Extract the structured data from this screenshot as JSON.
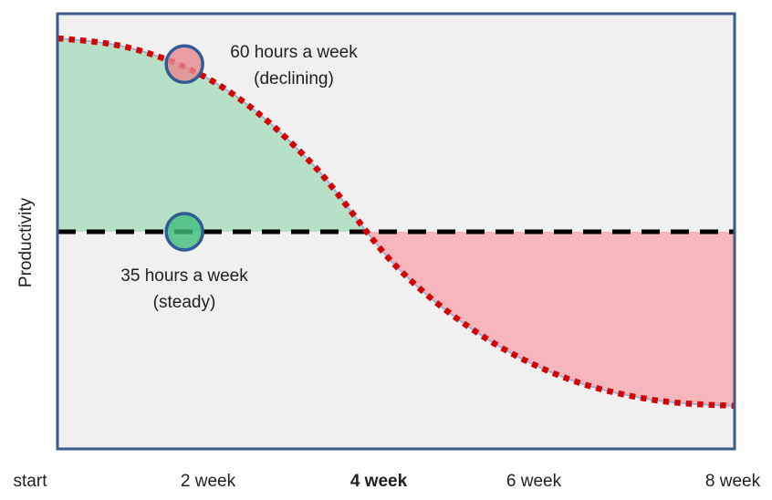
{
  "chart_data": {
    "type": "line",
    "title": "",
    "xlabel": "",
    "ylabel": "Productivity",
    "x_tick_labels": [
      "start",
      "2 week",
      "4 week",
      "6 week",
      "8 week"
    ],
    "x_weeks": [
      0,
      1,
      2,
      3,
      4,
      5,
      6,
      7,
      8
    ],
    "ylim": [
      0.5,
      1.51
    ],
    "grid": false,
    "legend": "none",
    "series": [
      {
        "name": "60 hours a week (declining)",
        "style": "red-dotted-sigmoid-curve",
        "values": [
          1.45,
          1.42,
          1.33,
          1.16,
          0.92,
          0.76,
          0.66,
          0.61,
          0.595
        ]
      },
      {
        "name": "35 hours a week (steady)",
        "style": "black-dashed-horizontal-baseline",
        "values": [
          1.0,
          1.0,
          1.0,
          1.0,
          1.0,
          1.0,
          1.0,
          1.0,
          1.0
        ]
      }
    ],
    "crossing_week": 3.67,
    "regions": [
      {
        "name": "surplus-above-baseline",
        "from_week": 0,
        "to_week": 3.67,
        "color": "#B7E1C6"
      },
      {
        "name": "deficit-below-baseline",
        "from_week": 3.67,
        "to_week": 8,
        "color": "#F6B6BB"
      }
    ],
    "markers": [
      {
        "label": "60 hours a week (declining)",
        "week": 1.5,
        "value": 1.39,
        "fill": "#E9898E"
      },
      {
        "label": "35 hours a week (steady)",
        "week": 1.5,
        "value": 1.0,
        "fill": "#3FBE7B"
      }
    ],
    "annotations": [
      {
        "line1": "60 hours a week",
        "line2": "(declining)"
      },
      {
        "line1": "35 hours a week",
        "line2": "(steady)"
      }
    ],
    "colors": {
      "declining_curve": "#D40404",
      "declining_curve_underline": "#8FB4DC",
      "steady_line": "#000000",
      "surplus_fill": "#B7E1C6",
      "deficit_fill": "#F6B6BB",
      "marker_stroke": "#2F5B96",
      "plot_background": "#F0F0F0",
      "plot_border": "#3A5A8E",
      "text": "#1F1F1F"
    }
  }
}
